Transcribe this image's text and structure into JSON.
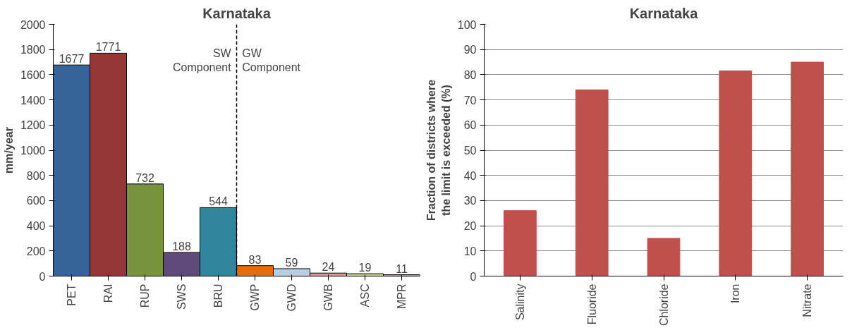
{
  "chart_data": [
    {
      "type": "bar",
      "title": "Karnataka",
      "ylabel": "mm/year",
      "categories": [
        "PET",
        "RAI",
        "RUP",
        "SWS",
        "BRU",
        "GWP",
        "GWD",
        "GWB",
        "ASC",
        "MPR"
      ],
      "values": [
        1677,
        1771,
        732,
        188,
        544,
        83,
        59,
        24,
        19,
        11
      ],
      "colors": [
        "#35649a",
        "#953735",
        "#77933c",
        "#604a7b",
        "#31859c",
        "#e46c0a",
        "#b9cde5",
        "#d99694",
        "#c3d69b",
        "#b3a2c7"
      ],
      "ylim": [
        0,
        2000
      ],
      "yticks": [
        0,
        200,
        400,
        600,
        800,
        1000,
        1200,
        1400,
        1600,
        1800,
        2000
      ],
      "grid": false,
      "data_labels": true,
      "annotations": [
        "SW Component",
        "GW Component"
      ]
    },
    {
      "type": "bar",
      "title": "Karnataka",
      "ylabel": "Fraction of districts where the limit is exceeded (%)",
      "categories": [
        "Salinity",
        "Fluoride",
        "Chloride",
        "Iron",
        "Nitrate"
      ],
      "values": [
        26,
        74,
        15,
        81.5,
        85
      ],
      "color": "#c0504d",
      "ylim": [
        0,
        100
      ],
      "yticks": [
        0,
        10,
        20,
        30,
        40,
        50,
        60,
        70,
        80,
        90,
        100
      ],
      "grid": "y"
    }
  ]
}
